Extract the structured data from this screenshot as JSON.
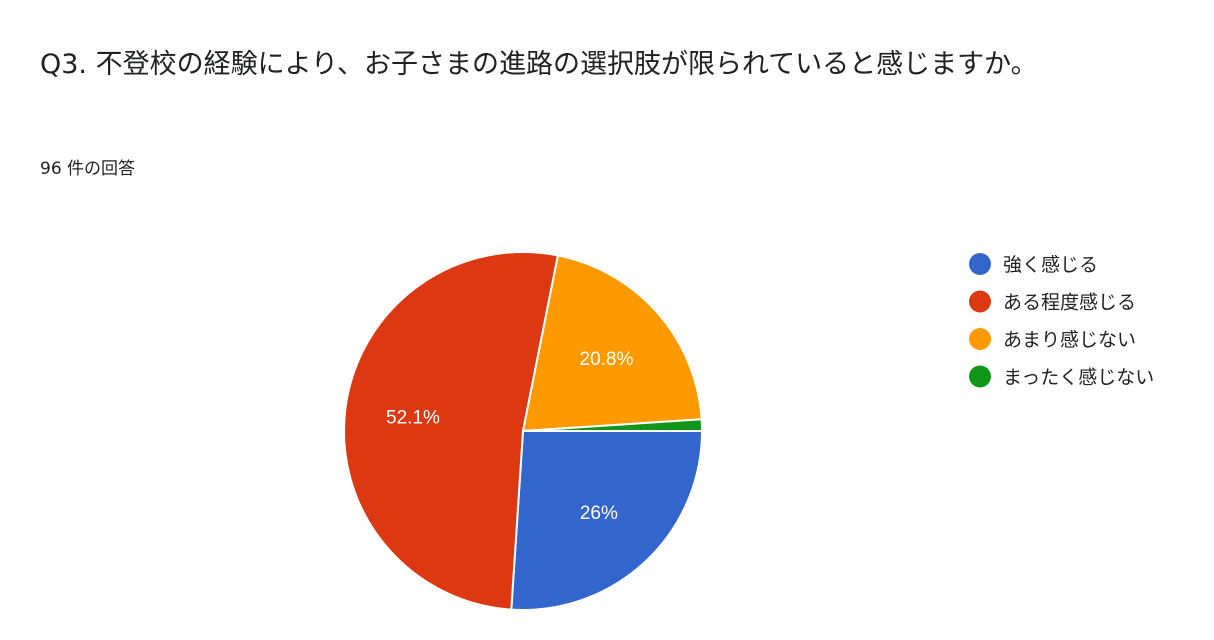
{
  "title": "Q3. 不登校の経験により、お子さまの進路の選択肢が限られていると感じますか。",
  "response_count": "96 件の回答",
  "chart_data": {
    "type": "pie",
    "title": "",
    "categories": [
      "強く感じる",
      "ある程度感じる",
      "あまり感じない",
      "まったく感じない"
    ],
    "values": [
      25,
      50,
      20,
      1
    ],
    "data_labels": [
      "26%",
      "52.1%",
      "20.8%",
      ""
    ],
    "colors": [
      "#3366cc",
      "#dc3912",
      "#ff9900",
      "#109618"
    ],
    "start": "3 o'clock, clockwise",
    "legend_position": "right"
  }
}
